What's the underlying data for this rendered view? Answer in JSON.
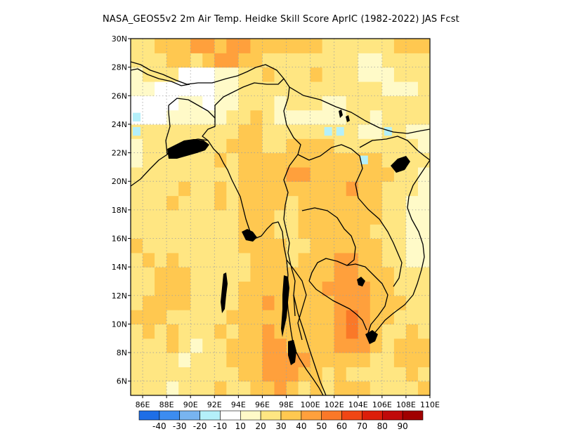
{
  "title": "NASA_GEOS5v2  2m Air Temp. Heidke Skill Score AprIC (1982-2022) JAS Fcst",
  "colors": {
    "land_background": "#ffffff",
    "frame": "#000000",
    "grid": "#a0a0a0",
    "coastline": "#000000"
  },
  "chart_data": {
    "type": "heatmap",
    "title": "NASA_GEOS5v2  2m Air Temp. Heidke Skill Score AprIC (1982-2022) JAS Fcst",
    "xlim": [
      85,
      110
    ],
    "ylim": [
      5,
      30
    ],
    "x_unit": "degrees longitude (E)",
    "y_unit": "degrees latitude (N)",
    "x_ticks": [
      86,
      88,
      90,
      92,
      94,
      96,
      98,
      100,
      102,
      104,
      106,
      108,
      110
    ],
    "x_tick_labels": [
      "86E",
      "88E",
      "90E",
      "92E",
      "94E",
      "96E",
      "98E",
      "100E",
      "102E",
      "104E",
      "106E",
      "108E",
      "110E"
    ],
    "y_ticks": [
      6,
      8,
      10,
      12,
      14,
      16,
      18,
      20,
      22,
      24,
      26,
      28,
      30
    ],
    "y_tick_labels": [
      "6N",
      "8N",
      "10N",
      "12N",
      "14N",
      "16N",
      "18N",
      "20N",
      "22N",
      "24N",
      "26N",
      "28N",
      "30N"
    ],
    "grid": true,
    "grid_style": "dotted",
    "colorbar": {
      "placement": "bottom",
      "labels": [
        "-40",
        "-30",
        "-20",
        "-10",
        "10",
        "20",
        "30",
        "40",
        "50",
        "60",
        "70",
        "80",
        "90"
      ],
      "bins": [
        {
          "min": null,
          "max": -40,
          "color": "#1e6ee6"
        },
        {
          "min": -40,
          "max": -30,
          "color": "#3c8cf0"
        },
        {
          "min": -30,
          "max": -20,
          "color": "#78b4f0"
        },
        {
          "min": -20,
          "max": -10,
          "color": "#b4f0fa"
        },
        {
          "min": -10,
          "max": 10,
          "color": "#ffffff"
        },
        {
          "min": 10,
          "max": 20,
          "color": "#fffac8"
        },
        {
          "min": 20,
          "max": 30,
          "color": "#ffe682"
        },
        {
          "min": 30,
          "max": 40,
          "color": "#ffc850"
        },
        {
          "min": 40,
          "max": 50,
          "color": "#ffa03c"
        },
        {
          "min": 50,
          "max": 60,
          "color": "#fa7828"
        },
        {
          "min": 60,
          "max": 70,
          "color": "#f04614"
        },
        {
          "min": 70,
          "max": 80,
          "color": "#dc1e0a"
        },
        {
          "min": 80,
          "max": 90,
          "color": "#c00a0a"
        },
        {
          "min": 90,
          "max": null,
          "color": "#a00000"
        }
      ]
    },
    "lon_step": 1,
    "lat_step": 1,
    "lon_start": 85,
    "lat_start": 5,
    "grid_values_note": "rows from 5N-6N (first) to 29N-30N (last); columns 85E..109E",
    "values": [
      [
        20,
        20,
        25,
        15,
        20,
        20,
        25,
        30,
        20,
        25,
        30,
        35,
        45,
        35,
        25,
        30,
        25,
        30,
        30,
        30,
        20,
        20,
        20,
        25,
        30
      ],
      [
        25,
        20,
        20,
        25,
        20,
        25,
        20,
        25,
        25,
        30,
        35,
        40,
        45,
        45,
        35,
        35,
        25,
        30,
        25,
        25,
        20,
        20,
        25,
        30,
        25
      ],
      [
        20,
        25,
        25,
        20,
        15,
        20,
        25,
        25,
        30,
        30,
        35,
        40,
        45,
        40,
        40,
        35,
        30,
        30,
        30,
        30,
        25,
        25,
        30,
        35,
        30
      ],
      [
        20,
        25,
        25,
        30,
        25,
        15,
        20,
        25,
        30,
        30,
        35,
        40,
        40,
        35,
        35,
        35,
        30,
        40,
        45,
        40,
        30,
        25,
        30,
        35,
        30
      ],
      [
        25,
        30,
        25,
        30,
        25,
        20,
        25,
        30,
        25,
        30,
        35,
        40,
        35,
        35,
        30,
        30,
        35,
        45,
        50,
        45,
        30,
        25,
        25,
        30,
        25
      ],
      [
        30,
        30,
        35,
        25,
        25,
        25,
        25,
        25,
        30,
        30,
        35,
        35,
        35,
        30,
        30,
        30,
        35,
        45,
        55,
        45,
        35,
        30,
        25,
        25,
        25
      ],
      [
        25,
        30,
        30,
        30,
        30,
        25,
        25,
        20,
        25,
        30,
        35,
        40,
        35,
        35,
        30,
        30,
        35,
        40,
        45,
        40,
        35,
        30,
        30,
        25,
        20
      ],
      [
        20,
        25,
        30,
        35,
        30,
        25,
        25,
        20,
        25,
        30,
        35,
        35,
        30,
        30,
        30,
        35,
        40,
        45,
        40,
        40,
        30,
        30,
        25,
        20,
        20
      ],
      [
        25,
        25,
        30,
        30,
        30,
        25,
        25,
        20,
        25,
        25,
        35,
        35,
        30,
        30,
        30,
        35,
        35,
        45,
        45,
        35,
        30,
        30,
        25,
        20,
        20
      ],
      [
        25,
        30,
        25,
        30,
        25,
        25,
        20,
        20,
        25,
        25,
        30,
        30,
        30,
        25,
        30,
        30,
        35,
        40,
        40,
        35,
        30,
        25,
        20,
        15,
        15
      ],
      [
        30,
        25,
        25,
        25,
        20,
        25,
        25,
        25,
        25,
        30,
        35,
        30,
        30,
        25,
        25,
        30,
        30,
        35,
        35,
        30,
        30,
        25,
        20,
        15,
        15
      ],
      [
        25,
        25,
        20,
        25,
        25,
        25,
        25,
        25,
        25,
        30,
        35,
        30,
        25,
        25,
        30,
        35,
        35,
        30,
        30,
        30,
        25,
        25,
        20,
        15,
        15
      ],
      [
        20,
        25,
        25,
        20,
        25,
        25,
        25,
        25,
        25,
        30,
        30,
        30,
        25,
        25,
        30,
        35,
        35,
        30,
        30,
        30,
        30,
        25,
        20,
        15,
        15
      ],
      [
        20,
        25,
        25,
        30,
        25,
        25,
        25,
        30,
        25,
        30,
        30,
        30,
        30,
        25,
        30,
        30,
        35,
        30,
        35,
        35,
        30,
        25,
        20,
        15,
        15
      ],
      [
        20,
        25,
        25,
        25,
        30,
        25,
        25,
        30,
        25,
        30,
        35,
        30,
        30,
        35,
        35,
        35,
        30,
        30,
        40,
        35,
        30,
        25,
        20,
        20,
        15
      ],
      [
        25,
        25,
        20,
        25,
        25,
        25,
        25,
        25,
        25,
        30,
        35,
        30,
        35,
        40,
        40,
        35,
        30,
        30,
        35,
        30,
        30,
        30,
        25,
        20,
        15
      ],
      [
        15,
        20,
        20,
        20,
        20,
        20,
        25,
        30,
        25,
        35,
        35,
        30,
        30,
        35,
        35,
        35,
        35,
        30,
        30,
        30,
        30,
        25,
        25,
        20,
        20
      ],
      [
        15,
        20,
        20,
        20,
        20,
        20,
        25,
        25,
        30,
        30,
        30,
        25,
        25,
        30,
        35,
        35,
        30,
        25,
        25,
        25,
        25,
        25,
        20,
        20,
        15
      ],
      [
        20,
        20,
        20,
        20,
        20,
        20,
        20,
        20,
        25,
        30,
        30,
        25,
        20,
        20,
        20,
        20,
        20,
        20,
        20,
        15,
        15,
        20,
        20,
        15,
        15
      ],
      [
        -10,
        5,
        5,
        10,
        15,
        15,
        10,
        15,
        20,
        25,
        30,
        20,
        15,
        15,
        15,
        15,
        15,
        15,
        20,
        20,
        15,
        20,
        20,
        20,
        20
      ],
      [
        -10,
        5,
        5,
        5,
        10,
        15,
        5,
        10,
        15,
        20,
        25,
        20,
        15,
        20,
        20,
        20,
        15,
        15,
        20,
        20,
        20,
        20,
        20,
        20,
        25
      ],
      [
        15,
        15,
        5,
        5,
        5,
        5,
        5,
        10,
        15,
        20,
        25,
        25,
        20,
        25,
        25,
        25,
        20,
        20,
        20,
        20,
        20,
        15,
        15,
        15,
        20
      ],
      [
        15,
        20,
        20,
        25,
        5,
        5,
        5,
        10,
        15,
        20,
        25,
        30,
        25,
        25,
        25,
        30,
        25,
        20,
        20,
        15,
        15,
        15,
        20,
        20,
        20
      ],
      [
        20,
        25,
        25,
        35,
        30,
        25,
        35,
        40,
        45,
        35,
        30,
        25,
        20,
        20,
        25,
        25,
        25,
        20,
        20,
        15,
        15,
        20,
        20,
        20,
        25
      ],
      [
        25,
        25,
        30,
        35,
        35,
        40,
        40,
        35,
        45,
        40,
        35,
        30,
        35,
        35,
        30,
        30,
        25,
        25,
        25,
        20,
        25,
        25,
        30,
        30,
        30
      ]
    ],
    "special_cells": [
      {
        "lon": 85,
        "lat": 23,
        "value": -15
      },
      {
        "lon": 85,
        "lat": 24,
        "value": -15
      },
      {
        "lon": 101,
        "lat": 23,
        "value": -15
      },
      {
        "lon": 102,
        "lat": 23,
        "value": -15
      },
      {
        "lon": 106,
        "lat": 23,
        "value": -15
      },
      {
        "lon": 104,
        "lat": 21,
        "value": -15
      }
    ],
    "land_outline": "coastlines and political borders drawn in black"
  }
}
